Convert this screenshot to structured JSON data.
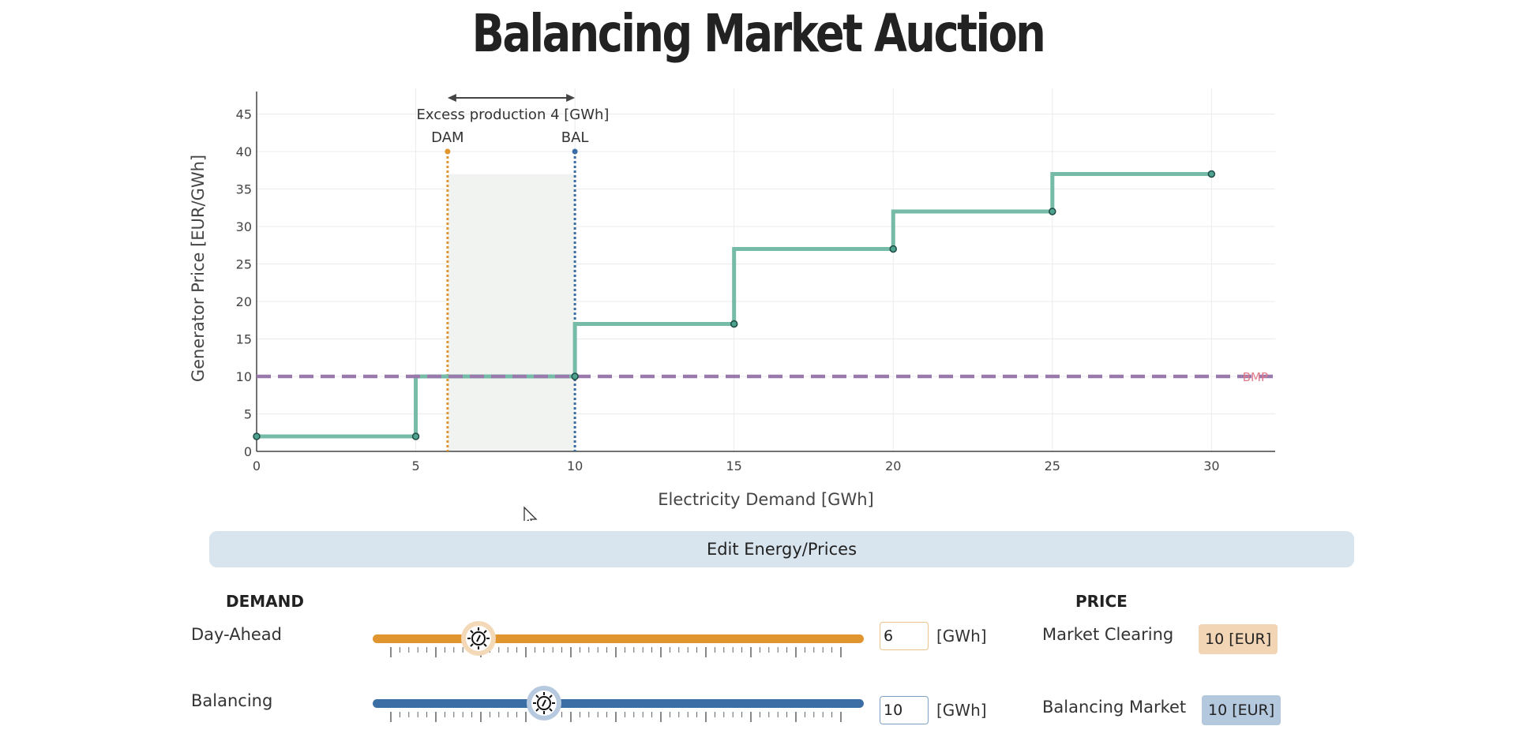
{
  "title": "Balancing Market Auction",
  "chart_data": {
    "type": "line",
    "xlabel": "Electricity Demand [GWh]",
    "ylabel": "Generator Price [EUR/GWh]",
    "xlim": [
      0,
      32
    ],
    "ylim": [
      0,
      48
    ],
    "x_ticks": [
      0,
      5,
      10,
      15,
      20,
      25,
      30
    ],
    "y_ticks": [
      0,
      5,
      10,
      15,
      20,
      25,
      30,
      35,
      40,
      45
    ],
    "grid": true,
    "series": [
      {
        "kind": "step",
        "color": "#76bba7",
        "points": [
          [
            0,
            2
          ],
          [
            5,
            2
          ],
          [
            5,
            10
          ],
          [
            10,
            10
          ],
          [
            10,
            17
          ],
          [
            15,
            17
          ],
          [
            15,
            27
          ],
          [
            20,
            27
          ],
          [
            20,
            32
          ],
          [
            25,
            32
          ],
          [
            25,
            37
          ],
          [
            30,
            37
          ]
        ],
        "markers": [
          [
            0,
            2
          ],
          [
            5,
            2
          ],
          [
            10,
            10
          ],
          [
            15,
            17
          ],
          [
            20,
            27
          ],
          [
            25,
            32
          ],
          [
            30,
            37
          ]
        ]
      }
    ],
    "horizontal_line": {
      "y": 10,
      "label": "BMP",
      "color": "#9a79ad"
    },
    "vertical_lines": [
      {
        "x": 6,
        "label": "DAM",
        "color": "#e0952f",
        "top": 40
      },
      {
        "x": 10,
        "label": "BAL",
        "color": "#3b6ea5",
        "top": 40
      }
    ],
    "shaded_region": {
      "x0": 6,
      "x1": 10,
      "y0": 0,
      "y1": 37,
      "color": "#f1f3f1"
    },
    "annotation": {
      "text": "Excess production 4 [GWh]",
      "x_from": 6,
      "x_to": 10
    }
  },
  "edit_button": "Edit Energy/Prices",
  "demand": {
    "heading": "DEMAND",
    "day_ahead": {
      "label": "Day-Ahead",
      "value": "6",
      "unit": "[GWh]",
      "color": "#e0952f",
      "fraction": 0.2
    },
    "balancing": {
      "label": "Balancing",
      "value": "10",
      "unit": "[GWh]",
      "color": "#3b6ea5",
      "fraction": 0.333
    }
  },
  "price": {
    "heading": "PRICE",
    "market_clearing": {
      "label": "Market Clearing",
      "value": "10 [EUR]",
      "bg": "#f2d5b4"
    },
    "balancing_market": {
      "label": "Balancing Market",
      "value": "10 [EUR]",
      "bg": "#b4c8de"
    }
  },
  "icons": {
    "slider_thumb": "sun-dial-icon",
    "cursor": "mouse-pointer-icon"
  }
}
